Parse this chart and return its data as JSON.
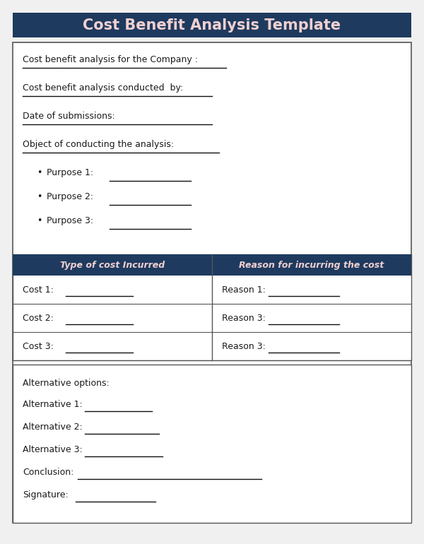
{
  "title": "Cost Benefit Analysis Template",
  "title_bg": "#1e3a5f",
  "title_fg": "#f0d0d0",
  "body_bg": "#ffffff",
  "page_bg": "#f0f0f0",
  "border_color": "#555555",
  "header_bg": "#1e3a5f",
  "header_fg": "#f0d0d0",
  "text_color": "#1a1a1a",
  "line_color": "#111111",
  "section1_lines": [
    "Cost benefit analysis for the Company :",
    "Cost benefit analysis conducted  by:",
    "Date of submissions:",
    "Object of conducting the analysis:"
  ],
  "bullets": [
    "Purpose 1:",
    "Purpose 2:",
    "Purpose 3:"
  ],
  "table_headers": [
    "Type of cost Incurred",
    "Reason for incurring the cost"
  ],
  "table_rows": [
    [
      "Cost 1:",
      "Reason 1:"
    ],
    [
      "Cost 2:",
      "Reason 3:"
    ],
    [
      "Cost 3:",
      "Reason 3:"
    ]
  ],
  "section3_header": "Alternative options:",
  "alternatives": [
    "Alternative 1:",
    "Alternative 2:",
    "Alternative 3:"
  ],
  "footer_lines": [
    "Conclusion:",
    "Signature:"
  ]
}
